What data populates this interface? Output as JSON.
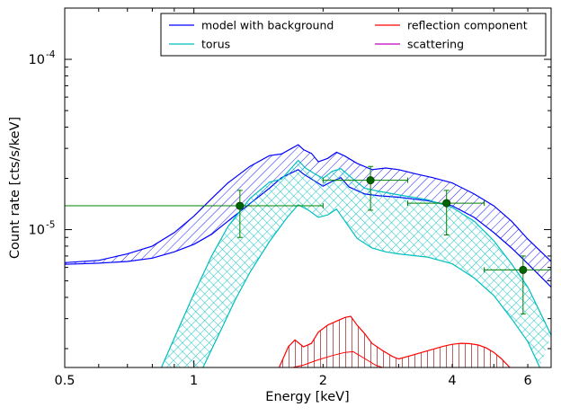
{
  "chart_data": {
    "type": "line",
    "title": "",
    "xlabel": "Energy [keV]",
    "ylabel": "Count rate [cts/s/keV]",
    "xscale": "log",
    "yscale": "log",
    "xlim": [
      0.5,
      6.8
    ],
    "ylim": [
      1.55e-06,
      0.0002
    ],
    "x_ticks": [
      {
        "value": 0.5,
        "label": "0.5"
      },
      {
        "value": 1,
        "label": "1"
      },
      {
        "value": 2,
        "label": "2"
      },
      {
        "value": 4,
        "label": "4"
      },
      {
        "value": 6,
        "label": "6"
      }
    ],
    "y_ticks": [
      {
        "value": 1e-05,
        "base": "10",
        "exp": "-5"
      },
      {
        "value": 0.0001,
        "base": "10",
        "exp": "-4"
      }
    ],
    "legend": {
      "placement": "top-right",
      "columns": 2,
      "entries": [
        {
          "label": "model with background",
          "color": "#0000ff"
        },
        {
          "label": "torus",
          "color": "#00bfbf"
        },
        {
          "label": "reflection component",
          "color": "#ff0000"
        },
        {
          "label": "scattering",
          "color": "#bf00bf"
        }
      ]
    },
    "bands": [
      {
        "name": "model with background",
        "color": "#0000ff",
        "hatch": "diagonal",
        "upper": [
          [
            0.5,
            6.4e-06
          ],
          [
            0.6,
            6.6e-06
          ],
          [
            0.7,
            7.2e-06
          ],
          [
            0.8,
            8e-06
          ],
          [
            0.9,
            9.6e-06
          ],
          [
            1.0,
            1.2e-05
          ],
          [
            1.1,
            1.52e-05
          ],
          [
            1.2,
            1.88e-05
          ],
          [
            1.35,
            2.35e-05
          ],
          [
            1.5,
            2.72e-05
          ],
          [
            1.6,
            2.78e-05
          ],
          [
            1.75,
            3.15e-05
          ],
          [
            1.8,
            2.95e-05
          ],
          [
            1.88,
            2.8e-05
          ],
          [
            1.95,
            2.5e-05
          ],
          [
            2.05,
            2.62e-05
          ],
          [
            2.15,
            2.85e-05
          ],
          [
            2.25,
            2.7e-05
          ],
          [
            2.4,
            2.45e-05
          ],
          [
            2.6,
            2.25e-05
          ],
          [
            2.8,
            2.3e-05
          ],
          [
            3.0,
            2.25e-05
          ],
          [
            3.3,
            2.12e-05
          ],
          [
            3.6,
            2.02e-05
          ],
          [
            4.0,
            1.88e-05
          ],
          [
            4.5,
            1.62e-05
          ],
          [
            5.0,
            1.38e-05
          ],
          [
            5.5,
            1.12e-05
          ],
          [
            6.0,
            8.8e-06
          ],
          [
            6.8,
            6.5e-06
          ]
        ],
        "lower": [
          [
            0.5,
            6.25e-06
          ],
          [
            0.6,
            6.35e-06
          ],
          [
            0.7,
            6.5e-06
          ],
          [
            0.8,
            6.8e-06
          ],
          [
            0.9,
            7.4e-06
          ],
          [
            1.0,
            8.2e-06
          ],
          [
            1.1,
            9.4e-06
          ],
          [
            1.2,
            1.12e-05
          ],
          [
            1.35,
            1.42e-05
          ],
          [
            1.5,
            1.75e-05
          ],
          [
            1.6,
            2.02e-05
          ],
          [
            1.75,
            2.25e-05
          ],
          [
            1.8,
            2.12e-05
          ],
          [
            1.9,
            1.95e-05
          ],
          [
            2.0,
            1.8e-05
          ],
          [
            2.1,
            1.92e-05
          ],
          [
            2.2,
            2.02e-05
          ],
          [
            2.3,
            1.78e-05
          ],
          [
            2.5,
            1.62e-05
          ],
          [
            2.7,
            1.58e-05
          ],
          [
            3.0,
            1.55e-05
          ],
          [
            3.5,
            1.48e-05
          ],
          [
            4.0,
            1.38e-05
          ],
          [
            4.5,
            1.18e-05
          ],
          [
            5.0,
            9.6e-06
          ],
          [
            5.5,
            7.8e-06
          ],
          [
            6.0,
            6.3e-06
          ],
          [
            6.8,
            4.6e-06
          ]
        ]
      },
      {
        "name": "torus",
        "color": "#00bfbf",
        "hatch": "cross",
        "upper": [
          [
            0.84,
            1.55e-06
          ],
          [
            0.9,
            2.3e-06
          ],
          [
            1.0,
            4.2e-06
          ],
          [
            1.1,
            7e-06
          ],
          [
            1.2,
            1.04e-05
          ],
          [
            1.35,
            1.52e-05
          ],
          [
            1.5,
            1.9e-05
          ],
          [
            1.6,
            1.98e-05
          ],
          [
            1.75,
            2.55e-05
          ],
          [
            1.82,
            2.3e-05
          ],
          [
            1.9,
            2.15e-05
          ],
          [
            2.0,
            2e-05
          ],
          [
            2.1,
            2.2e-05
          ],
          [
            2.2,
            2.28e-05
          ],
          [
            2.35,
            1.98e-05
          ],
          [
            2.5,
            1.75e-05
          ],
          [
            2.7,
            1.68e-05
          ],
          [
            3.0,
            1.6e-05
          ],
          [
            3.5,
            1.5e-05
          ],
          [
            4.0,
            1.35e-05
          ],
          [
            4.5,
            1.12e-05
          ],
          [
            5.0,
            8.6e-06
          ],
          [
            5.5,
            6.3e-06
          ],
          [
            6.0,
            4.6e-06
          ],
          [
            6.4,
            3.3e-06
          ],
          [
            6.8,
            2.4e-06
          ]
        ],
        "lower": [
          [
            1.05,
            1.55e-06
          ],
          [
            1.15,
            2.5e-06
          ],
          [
            1.25,
            3.9e-06
          ],
          [
            1.35,
            5.6e-06
          ],
          [
            1.5,
            8.5e-06
          ],
          [
            1.65,
            1.18e-05
          ],
          [
            1.75,
            1.4e-05
          ],
          [
            1.85,
            1.3e-05
          ],
          [
            1.95,
            1.18e-05
          ],
          [
            2.05,
            1.22e-05
          ],
          [
            2.15,
            1.32e-05
          ],
          [
            2.25,
            1.12e-05
          ],
          [
            2.4,
            8.9e-06
          ],
          [
            2.6,
            7.8e-06
          ],
          [
            2.8,
            7.4e-06
          ],
          [
            3.0,
            7.2e-06
          ],
          [
            3.5,
            6.9e-06
          ],
          [
            4.0,
            6.3e-06
          ],
          [
            4.5,
            5.2e-06
          ],
          [
            5.0,
            4.1e-06
          ],
          [
            5.5,
            3e-06
          ],
          [
            6.0,
            2.2e-06
          ],
          [
            6.4,
            1.55e-06
          ]
        ]
      }
    ],
    "reflection": {
      "name": "reflection component",
      "color": "#ff0000",
      "line": [
        [
          1.58,
          1.55e-06
        ],
        [
          1.66,
          2.05e-06
        ],
        [
          1.72,
          2.25e-06
        ],
        [
          1.8,
          2.05e-06
        ],
        [
          1.88,
          2.15e-06
        ],
        [
          1.95,
          2.5e-06
        ],
        [
          2.05,
          2.75e-06
        ],
        [
          2.15,
          2.9e-06
        ],
        [
          2.25,
          3.05e-06
        ],
        [
          2.32,
          3.1e-06
        ],
        [
          2.4,
          2.75e-06
        ],
        [
          2.5,
          2.45e-06
        ],
        [
          2.6,
          2.15e-06
        ],
        [
          2.75,
          1.95e-06
        ],
        [
          2.9,
          1.8e-06
        ],
        [
          3.0,
          1.74e-06
        ],
        [
          3.2,
          1.82e-06
        ],
        [
          3.4,
          1.9e-06
        ],
        [
          3.6,
          1.98e-06
        ],
        [
          3.8,
          2.06e-06
        ],
        [
          4.0,
          2.12e-06
        ],
        [
          4.2,
          2.15e-06
        ],
        [
          4.4,
          2.14e-06
        ],
        [
          4.6,
          2.1e-06
        ],
        [
          4.8,
          2.02e-06
        ],
        [
          5.0,
          1.9e-06
        ],
        [
          5.2,
          1.75e-06
        ],
        [
          5.45,
          1.55e-06
        ]
      ],
      "lower_line": [
        [
          1.7,
          1.55e-06
        ],
        [
          1.8,
          1.6e-06
        ],
        [
          1.95,
          1.72e-06
        ],
        [
          2.1,
          1.82e-06
        ],
        [
          2.25,
          1.9e-06
        ],
        [
          2.35,
          1.92e-06
        ],
        [
          2.5,
          1.75e-06
        ],
        [
          2.65,
          1.6e-06
        ],
        [
          2.75,
          1.55e-06
        ]
      ]
    },
    "points": [
      {
        "x": 1.28,
        "y": 1.38e-05,
        "x_low": 0.5,
        "x_high": 2.0,
        "y_low": 9e-06,
        "y_high": 1.7e-05
      },
      {
        "x": 2.58,
        "y": 1.95e-05,
        "x_low": 2.0,
        "x_high": 3.15,
        "y_low": 1.3e-05,
        "y_high": 2.35e-05
      },
      {
        "x": 3.88,
        "y": 1.43e-05,
        "x_low": 3.15,
        "x_high": 4.75,
        "y_low": 9.3e-06,
        "y_high": 1.7e-05
      },
      {
        "x": 5.85,
        "y": 5.8e-06,
        "x_low": 4.75,
        "x_high": 6.8,
        "y_low": 3.2e-06,
        "y_high": 7e-06
      }
    ],
    "points_color": "#008000"
  }
}
